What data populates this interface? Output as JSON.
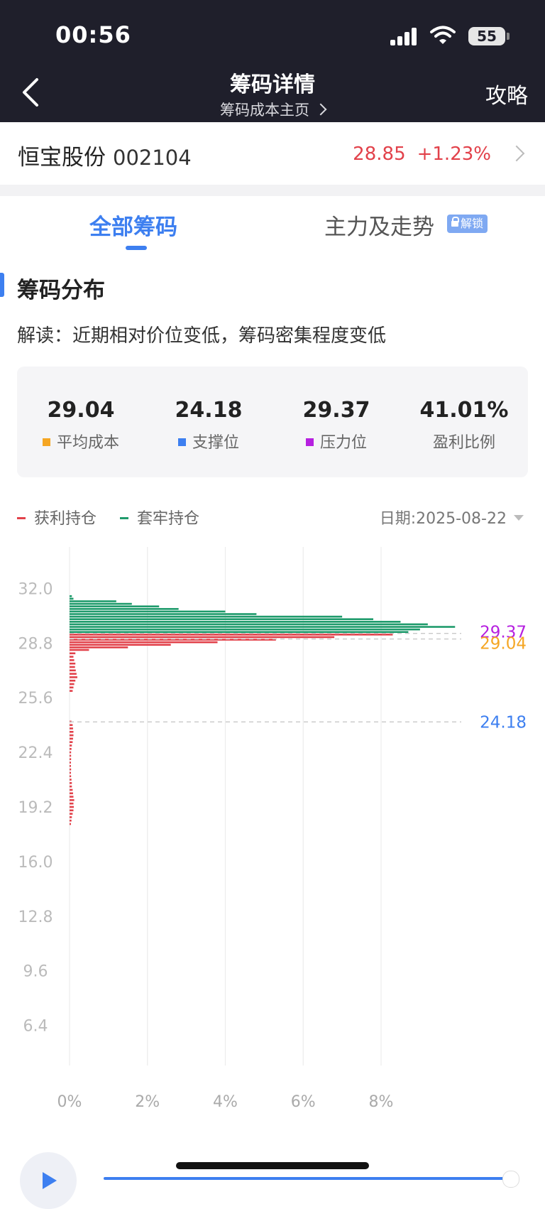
{
  "status_bar": {
    "time": "00:56",
    "battery": "55"
  },
  "nav": {
    "title": "筹码详情",
    "subtitle": "筹码成本主页",
    "right_link": "攻略"
  },
  "stock": {
    "name": "恒宝股份",
    "code": "002104",
    "price": "28.85",
    "change": "+1.23%"
  },
  "tabs": [
    {
      "label": "全部筹码",
      "active": true
    },
    {
      "label": "主力及走势",
      "active": false,
      "badge": "解锁"
    }
  ],
  "section": {
    "title": "筹码分布",
    "interpretation": "解读：近期相对价位变低，筹码密集程度变低"
  },
  "stats": [
    {
      "value": "29.04",
      "label": "平均成本",
      "color": "#f5a623"
    },
    {
      "value": "24.18",
      "label": "支撑位",
      "color": "#3d7ff0"
    },
    {
      "value": "29.37",
      "label": "压力位",
      "color": "#b620e0"
    },
    {
      "value": "41.01%",
      "label": "盈利比例",
      "color": ""
    }
  ],
  "legend": [
    {
      "label": "获利持仓",
      "color": "#e2414a"
    },
    {
      "label": "套牢持仓",
      "color": "#1f9b6c"
    }
  ],
  "date_label": "日期:2025-08-22",
  "chart_data": {
    "type": "bar",
    "orientation": "horizontal",
    "y_ticks": [
      "32.0",
      "28.8",
      "25.6",
      "22.4",
      "19.2",
      "16.0",
      "12.8",
      "9.6",
      "6.4"
    ],
    "x_ticks": [
      "0%",
      "2%",
      "4%",
      "6%",
      "8%"
    ],
    "xlim": [
      0,
      10
    ],
    "ylim": [
      5.0,
      34.0
    ],
    "colors": {
      "profit": "#e2414a",
      "trapped": "#1f9b6c"
    },
    "reference_lines": [
      {
        "label": "29.37",
        "value": 29.37,
        "color": "#b620e0"
      },
      {
        "label": "29.04",
        "value": 29.04,
        "color": "#f5a623"
      },
      {
        "label": "24.18",
        "value": 24.18,
        "color": "#3d7ff0"
      }
    ],
    "series": [
      {
        "name": "套牢持仓",
        "points": [
          [
            31.55,
            0.06
          ],
          [
            31.4,
            0.1
          ],
          [
            31.25,
            1.2
          ],
          [
            31.1,
            1.6
          ],
          [
            30.95,
            2.3
          ],
          [
            30.8,
            2.8
          ],
          [
            30.65,
            4.0
          ],
          [
            30.5,
            4.8
          ],
          [
            30.35,
            7.0
          ],
          [
            30.2,
            7.8
          ],
          [
            30.05,
            8.5
          ],
          [
            29.9,
            9.2
          ],
          [
            29.75,
            9.9
          ],
          [
            29.6,
            9.0
          ],
          [
            29.45,
            8.7
          ]
        ]
      },
      {
        "name": "获利持仓",
        "points": [
          [
            29.3,
            8.3
          ],
          [
            29.15,
            6.8
          ],
          [
            29.0,
            5.3
          ],
          [
            28.85,
            3.8
          ],
          [
            28.7,
            2.6
          ],
          [
            28.55,
            1.5
          ],
          [
            28.4,
            0.5
          ],
          [
            28.2,
            0.15
          ],
          [
            28.0,
            0.1
          ],
          [
            27.8,
            0.12
          ],
          [
            27.6,
            0.15
          ],
          [
            27.4,
            0.14
          ],
          [
            27.2,
            0.16
          ],
          [
            27.0,
            0.18
          ],
          [
            26.8,
            0.2
          ],
          [
            26.6,
            0.15
          ],
          [
            26.4,
            0.12
          ],
          [
            26.2,
            0.1
          ],
          [
            26.0,
            0.08
          ],
          [
            24.2,
            0.05
          ],
          [
            24.0,
            0.08
          ],
          [
            23.8,
            0.09
          ],
          [
            23.6,
            0.1
          ],
          [
            23.4,
            0.1
          ],
          [
            23.2,
            0.09
          ],
          [
            23.0,
            0.08
          ],
          [
            22.8,
            0.06
          ],
          [
            22.6,
            0.05
          ],
          [
            22.4,
            0.04
          ],
          [
            22.2,
            0.04
          ],
          [
            22.0,
            0.04
          ],
          [
            21.8,
            0.03
          ],
          [
            21.6,
            0.03
          ],
          [
            21.4,
            0.04
          ],
          [
            21.2,
            0.03
          ],
          [
            21.0,
            0.04
          ],
          [
            20.8,
            0.05
          ],
          [
            20.6,
            0.06
          ],
          [
            20.4,
            0.06
          ],
          [
            20.2,
            0.08
          ],
          [
            20.0,
            0.09
          ],
          [
            19.8,
            0.1
          ],
          [
            19.6,
            0.12
          ],
          [
            19.4,
            0.1
          ],
          [
            19.2,
            0.11
          ],
          [
            19.0,
            0.1
          ],
          [
            18.8,
            0.08
          ],
          [
            18.6,
            0.06
          ],
          [
            18.4,
            0.05
          ],
          [
            18.2,
            0.03
          ]
        ]
      }
    ]
  }
}
